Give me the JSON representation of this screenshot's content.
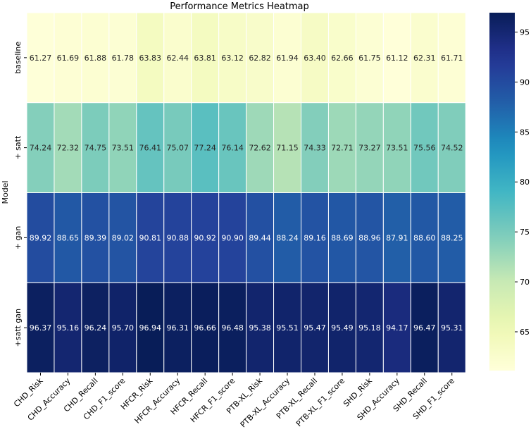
{
  "chart_data": {
    "type": "heatmap",
    "title": "Performance Metrics Heatmap",
    "xlabel": "",
    "ylabel": "Model",
    "rows": [
      "baseline",
      "+ satt",
      "+ gan",
      "+satt gan"
    ],
    "columns": [
      "CHD_Risk",
      "CHD_Accuracy",
      "CHD_Recall",
      "CHD_F1_score",
      "HFCR_Risk",
      "HFCR_Accuracy",
      "HFCR_Recall",
      "HFCR_F1_score",
      "PTB-XL_Risk",
      "PTB-XL_Accuracy",
      "PTB-XL_Recall",
      "PTB-XL_F1_score",
      "SHD_Risk",
      "SHD_Accuracy",
      "SHD_Recall",
      "SHD_F1_score"
    ],
    "values": [
      [
        "61.27",
        "61.69",
        "61.88",
        "61.78",
        "63.83",
        "62.44",
        "63.81",
        "63.12",
        "62.82",
        "61.94",
        "63.40",
        "62.66",
        "61.75",
        "61.12",
        "62.31",
        "61.71"
      ],
      [
        "74.24",
        "72.32",
        "74.75",
        "73.51",
        "76.41",
        "75.07",
        "77.24",
        "76.14",
        "72.62",
        "71.15",
        "74.33",
        "72.71",
        "73.27",
        "73.51",
        "75.56",
        "74.52"
      ],
      [
        "89.92",
        "88.65",
        "89.39",
        "89.02",
        "90.81",
        "90.88",
        "90.92",
        "90.90",
        "89.44",
        "88.24",
        "89.16",
        "88.69",
        "88.96",
        "87.91",
        "88.60",
        "88.25"
      ],
      [
        "96.37",
        "95.16",
        "96.24",
        "95.70",
        "96.94",
        "96.31",
        "96.66",
        "96.48",
        "95.38",
        "95.51",
        "95.47",
        "95.49",
        "95.18",
        "94.17",
        "96.47",
        "95.31"
      ]
    ],
    "colorbar": {
      "colormap": "YlGnBu",
      "range": [
        61.12,
        96.94
      ],
      "ticks": [
        65,
        70,
        75,
        80,
        85,
        90,
        95
      ]
    }
  }
}
